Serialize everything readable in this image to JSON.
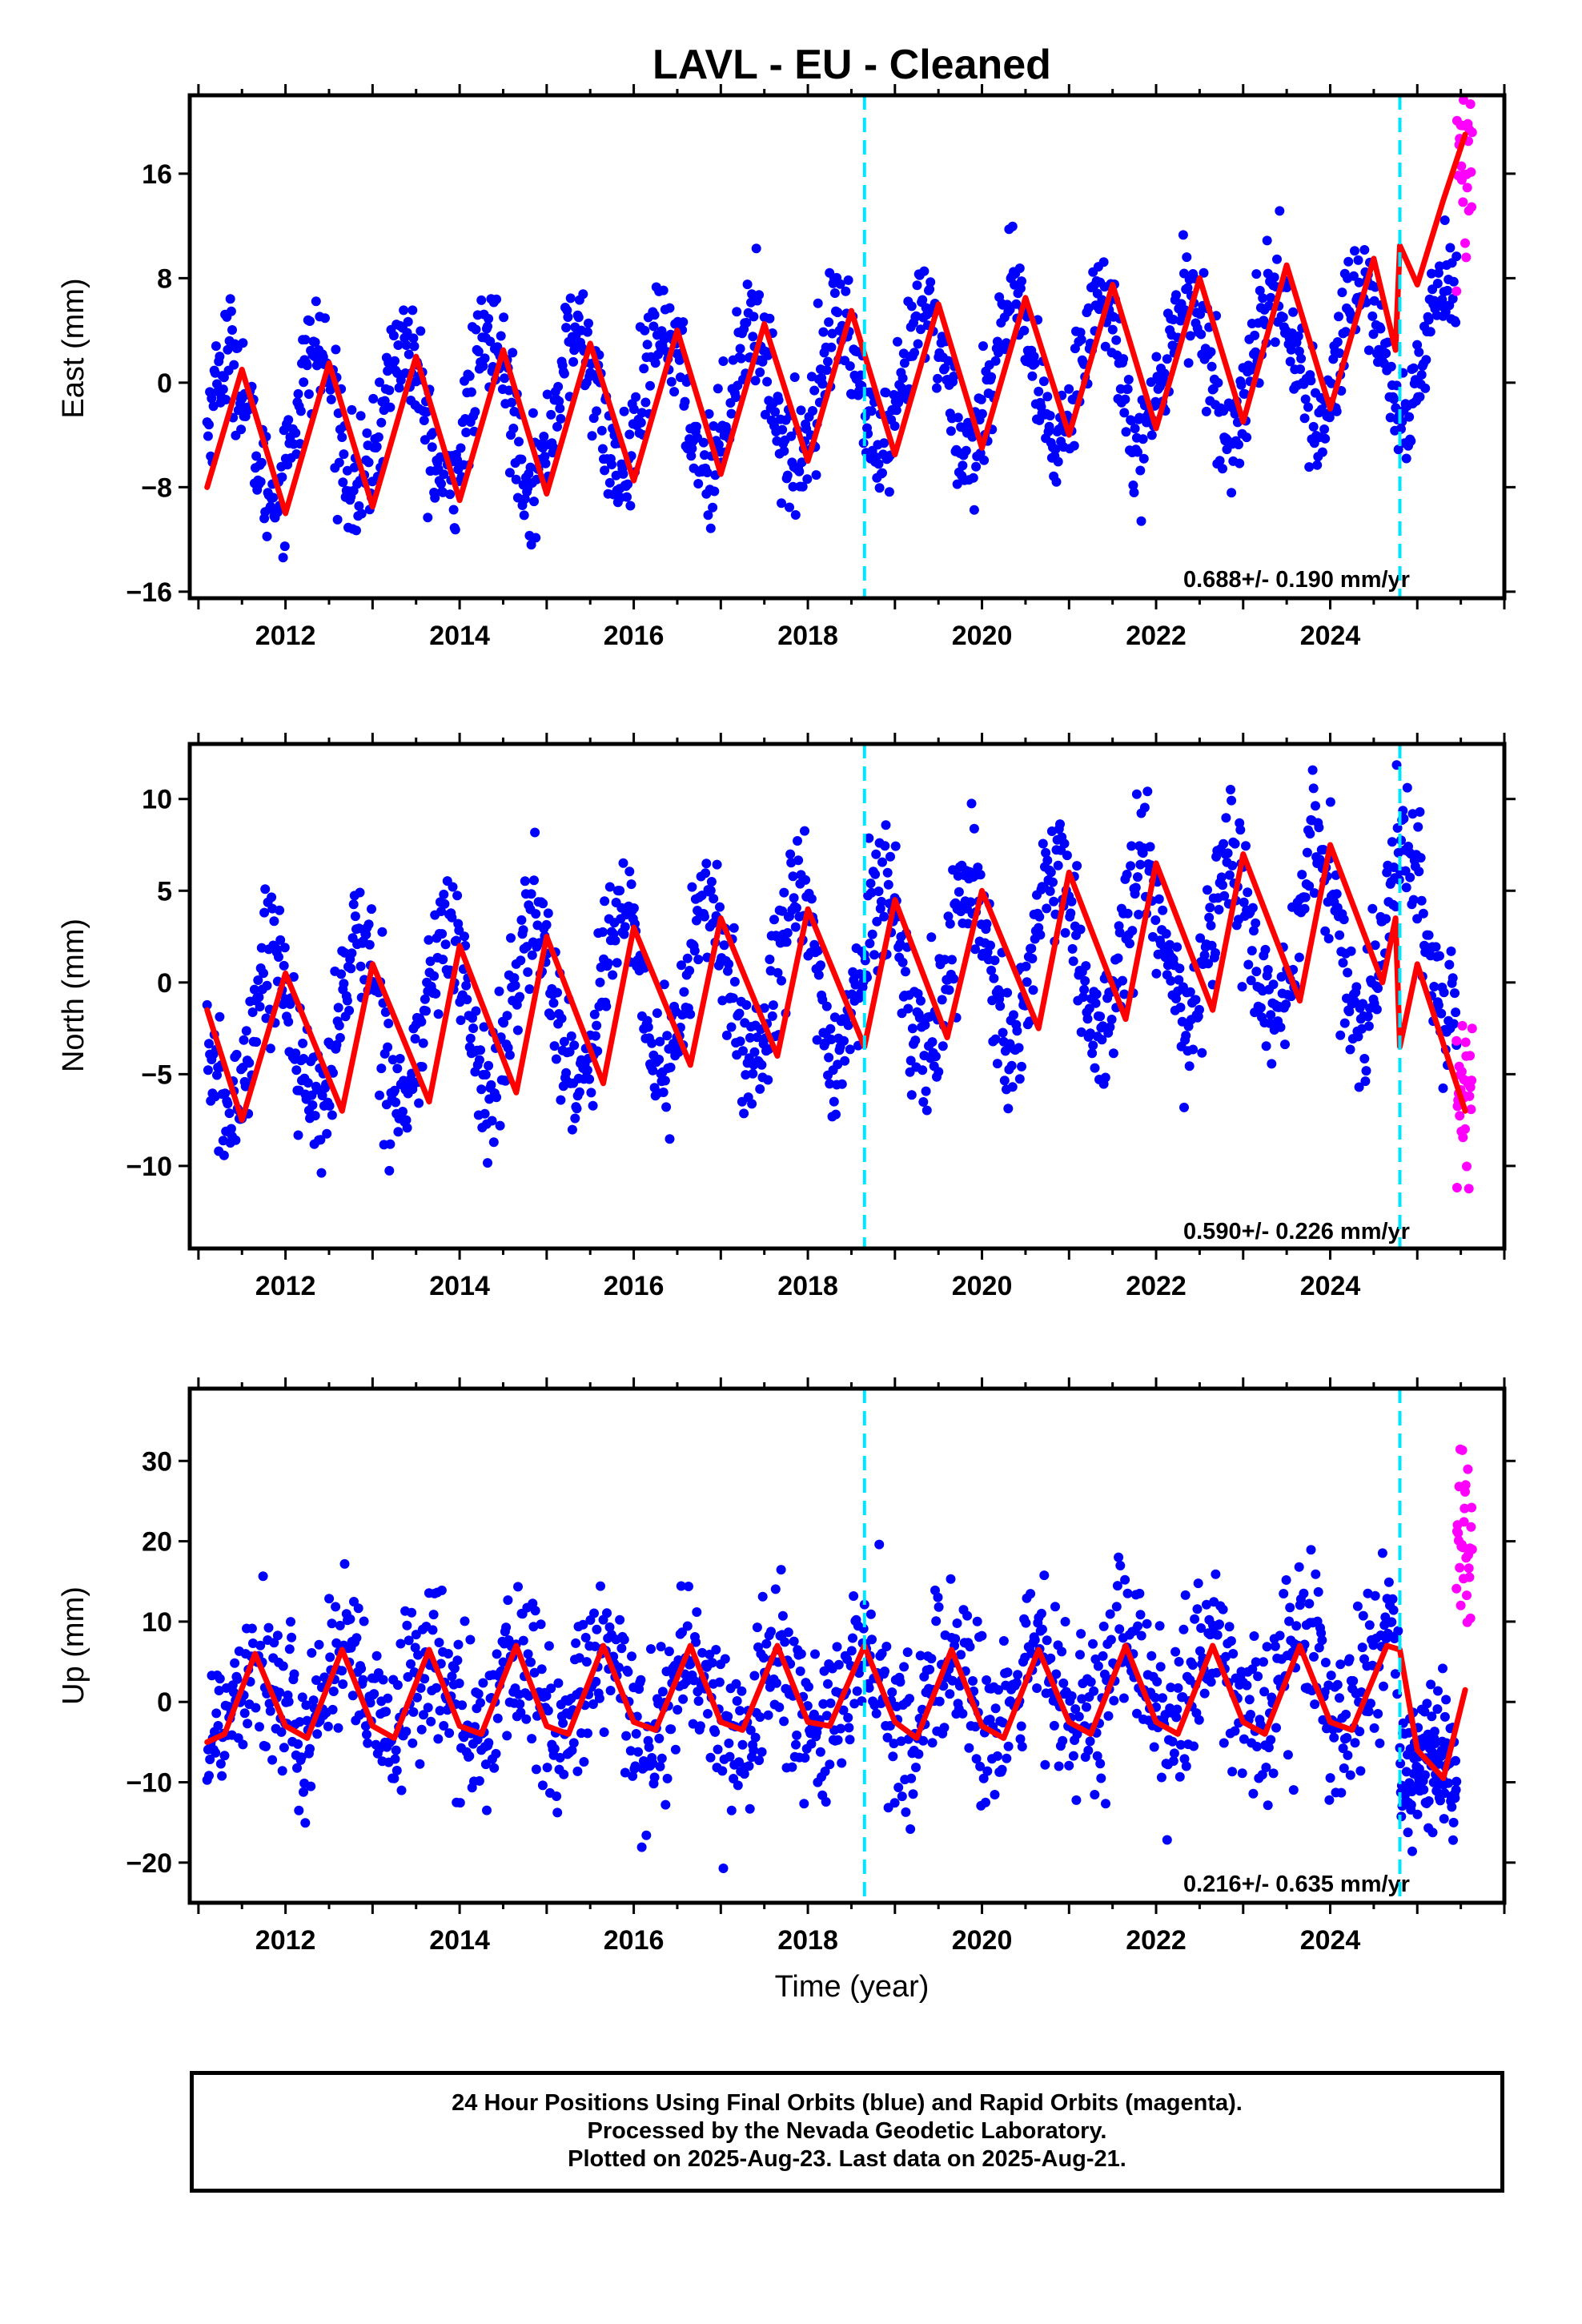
{
  "title": "LAVL  - EU - Cleaned",
  "colors": {
    "final": "#0000ff",
    "rapid": "#ff00ff",
    "model": "#ff0000",
    "event": "#00e5ff",
    "axis": "#000000"
  },
  "footer": {
    "line1": "24 Hour Positions Using Final Orbits (blue) and Rapid Orbits (magenta).",
    "line2": "Processed by the Nevada Geodetic Laboratory.",
    "line3": "Plotted on 2025-Aug-23. Last data on 2025-Aug-21."
  },
  "chart_data": [
    {
      "type": "scatter",
      "ylabel": "East (mm)",
      "xlim": [
        2010.9,
        2026.0
      ],
      "ylim": [
        -16.5,
        22
      ],
      "xticks": [
        "2012",
        "2014",
        "2016",
        "2018",
        "2020",
        "2022",
        "2024"
      ],
      "yticks": [
        "-16",
        "-8",
        "0",
        "8",
        "16"
      ],
      "yticks_values": [
        -16,
        -8,
        0,
        8,
        16
      ],
      "rate": "0.688+/- 0.190 mm/yr",
      "event_lines": [
        2018.65,
        2024.8
      ],
      "model": {
        "name": "model fit",
        "x": [
          2011.1,
          2011.5,
          2012.0,
          2012.5,
          2013.0,
          2013.5,
          2014.0,
          2014.5,
          2015.0,
          2015.5,
          2016.0,
          2016.5,
          2017.0,
          2017.5,
          2018.0,
          2018.5,
          2019.0,
          2019.5,
          2020.0,
          2020.5,
          2021.0,
          2021.5,
          2022.0,
          2022.5,
          2023.0,
          2023.5,
          2024.0,
          2024.5,
          2024.75,
          2024.8,
          2025.0,
          2025.3,
          2025.55
        ],
        "y": [
          -8,
          1,
          -10,
          1.5,
          -9.5,
          2,
          -9,
          2.5,
          -8.5,
          3,
          -7.5,
          4,
          -7,
          4.5,
          -6,
          5.5,
          -5.5,
          6,
          -5,
          6.5,
          -4,
          7.5,
          -3.5,
          8,
          -3,
          9,
          -2,
          9.5,
          2.5,
          10.5,
          7.5,
          14,
          19
        ]
      },
      "series": [
        {
          "name": "Final Orbits",
          "trend": [
            -3.5,
            -0.5,
            3.0
          ],
          "amplitude": 5.5,
          "phase": 2011.1,
          "noise": 2.2,
          "start": 2011.1,
          "end": 2025.45,
          "n": 1400
        },
        {
          "name": "Rapid Orbits",
          "trend": [
            16.0,
            16.0,
            16.0
          ],
          "amplitude": 2.0,
          "phase": 2025.4,
          "noise": 4.5,
          "start": 2025.45,
          "end": 2025.63,
          "n": 30
        }
      ]
    },
    {
      "type": "scatter",
      "ylabel": "North (mm)",
      "xlim": [
        2010.9,
        2026.0
      ],
      "ylim": [
        -14.5,
        13
      ],
      "xticks": [
        "2012",
        "2014",
        "2016",
        "2018",
        "2020",
        "2022",
        "2024"
      ],
      "yticks": [
        "-10",
        "-5",
        "0",
        "5",
        "10"
      ],
      "yticks_values": [
        -10,
        -5,
        0,
        5,
        10
      ],
      "rate": "0.590+/- 0.226 mm/yr",
      "event_lines": [
        2018.65,
        2024.8
      ],
      "model": {
        "name": "model fit",
        "x": [
          2011.1,
          2011.5,
          2012.0,
          2012.65,
          2013.0,
          2013.65,
          2014.0,
          2014.65,
          2015.0,
          2015.65,
          2016.0,
          2016.65,
          2017.0,
          2017.65,
          2018.0,
          2018.65,
          2019.0,
          2019.6,
          2020.0,
          2020.65,
          2021.0,
          2021.65,
          2022.0,
          2022.65,
          2023.0,
          2023.65,
          2024.0,
          2024.6,
          2024.75,
          2024.8,
          2025.0,
          2025.55
        ],
        "y": [
          -1.5,
          -7.5,
          0.5,
          -7,
          1,
          -6.5,
          2,
          -6,
          2.5,
          -5.5,
          3,
          -4.5,
          3.5,
          -4,
          4,
          -3.5,
          4.5,
          -3,
          5,
          -2.5,
          6,
          -2,
          6.5,
          -1.5,
          7,
          -1,
          7.5,
          0,
          3.5,
          -3.5,
          1,
          -7
        ]
      },
      "series": [
        {
          "name": "Final Orbits",
          "trend": [
            -3.0,
            0.5,
            3.0
          ],
          "amplitude": 4.5,
          "phase": 2011.6,
          "noise": 1.8,
          "start": 2011.1,
          "end": 2025.45,
          "n": 1400
        },
        {
          "name": "Rapid Orbits",
          "trend": [
            -7.0,
            -7.0,
            -7.0
          ],
          "amplitude": 0.5,
          "phase": 2025.4,
          "noise": 2.2,
          "start": 2025.45,
          "end": 2025.63,
          "n": 30
        }
      ]
    },
    {
      "type": "scatter",
      "ylabel": "Up (mm)",
      "xlabel": "Time (year)",
      "xlim": [
        2010.9,
        2026.0
      ],
      "ylim": [
        -25,
        39
      ],
      "xticks": [
        "2012",
        "2014",
        "2016",
        "2018",
        "2020",
        "2022",
        "2024"
      ],
      "yticks": [
        "-20",
        "-10",
        "0",
        "10",
        "20",
        "30"
      ],
      "yticks_values": [
        -20,
        -10,
        0,
        10,
        20,
        30
      ],
      "rate": "0.216+/- 0.635 mm/yr",
      "event_lines": [
        2018.65,
        2024.8
      ],
      "model": {
        "name": "model fit",
        "x": [
          2011.1,
          2011.3,
          2011.65,
          2012.0,
          2012.25,
          2012.65,
          2013.0,
          2013.25,
          2013.65,
          2014.0,
          2014.25,
          2014.65,
          2015.0,
          2015.25,
          2015.65,
          2016.0,
          2016.25,
          2016.65,
          2017.0,
          2017.25,
          2017.65,
          2018.0,
          2018.25,
          2018.65,
          2019.0,
          2019.25,
          2019.65,
          2020.0,
          2020.25,
          2020.65,
          2021.0,
          2021.25,
          2021.65,
          2022.0,
          2022.25,
          2022.65,
          2023.0,
          2023.25,
          2023.65,
          2024.0,
          2024.25,
          2024.65,
          2024.8,
          2025.0,
          2025.3,
          2025.55
        ],
        "y": [
          -5,
          -4,
          6,
          -3,
          -4.5,
          6.5,
          -3,
          -4.5,
          6.5,
          -3,
          -4,
          7,
          -3,
          -4,
          7,
          -2.5,
          -3.5,
          7,
          -2.5,
          -3.5,
          7,
          -2.5,
          -3,
          7,
          -2.5,
          -4.5,
          6.5,
          -3,
          -4.5,
          6.5,
          -2.5,
          -4,
          7,
          -2.5,
          -4,
          7,
          -2.5,
          -4,
          7,
          -2.5,
          -3.5,
          7,
          6.5,
          -6,
          -9.5,
          1.5
        ]
      },
      "series": [
        {
          "name": "Final Orbits",
          "trend": [
            1.0,
            0.0,
            3.0
          ],
          "amplitude": 5.0,
          "phase": 2011.4,
          "noise": 5.2,
          "start": 2011.1,
          "end": 2024.78,
          "n": 1300
        },
        {
          "name": "Final Orbits",
          "trend": [
            -9.0,
            -9.0,
            -9.0
          ],
          "amplitude": 2.0,
          "phase": 2025.0,
          "noise": 4.0,
          "start": 2024.8,
          "end": 2025.45,
          "n": 120
        },
        {
          "name": "Rapid Orbits",
          "trend": [
            20.0,
            20.0,
            20.0
          ],
          "amplitude": 0.0,
          "phase": 2025.4,
          "noise": 6.5,
          "start": 2025.45,
          "end": 2025.63,
          "n": 30
        }
      ]
    }
  ]
}
